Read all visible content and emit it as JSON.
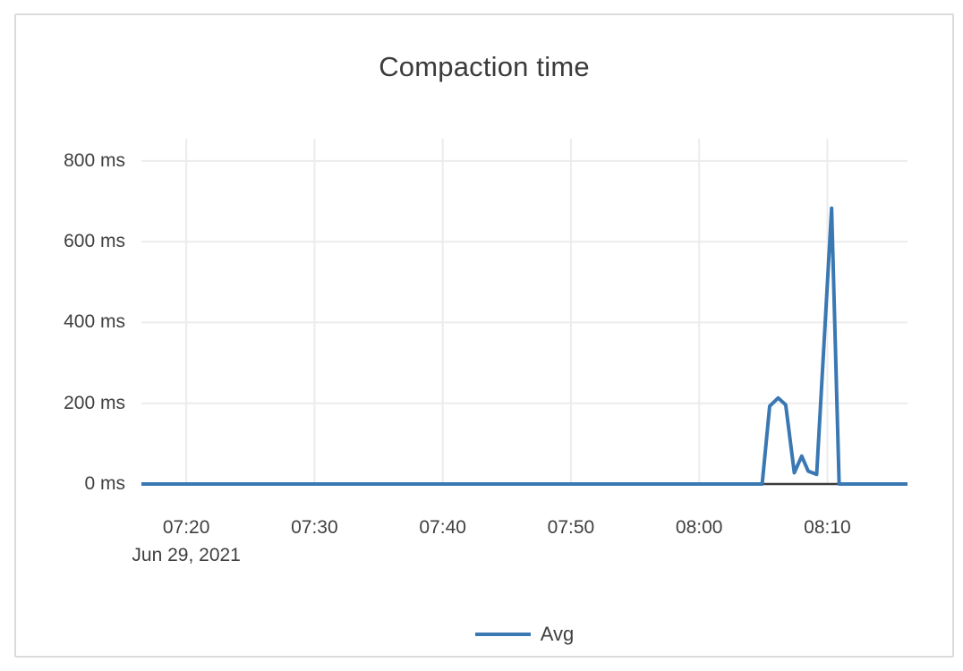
{
  "panel": {
    "background": "#ffffff",
    "border_color": "#dcdcdc"
  },
  "chart_data": {
    "type": "line",
    "title": "Compaction time",
    "grid": true,
    "grid_color": "#ececec",
    "zero_line_color": "#3a3a3a",
    "text_color": "#3f3f3f",
    "legend_position": "bottom",
    "x_axis": {
      "range": [
        "07:16:30",
        "08:16:15"
      ],
      "date_label": "Jun 29, 2021",
      "ticks": [
        {
          "label": "07:20",
          "time": "07:20:00"
        },
        {
          "label": "07:30",
          "time": "07:30:00"
        },
        {
          "label": "07:40",
          "time": "07:40:00"
        },
        {
          "label": "07:50",
          "time": "07:50:00"
        },
        {
          "label": "08:00",
          "time": "08:00:00"
        },
        {
          "label": "08:10",
          "time": "08:10:00"
        }
      ]
    },
    "y_axis": {
      "unit": "ms",
      "range": [
        0,
        855
      ],
      "ticks": [
        {
          "label": "0 ms",
          "value": 0
        },
        {
          "label": "200 ms",
          "value": 200
        },
        {
          "label": "400 ms",
          "value": 400
        },
        {
          "label": "600 ms",
          "value": 600
        },
        {
          "label": "800 ms",
          "value": 800
        }
      ]
    },
    "series": [
      {
        "name": "Avg",
        "color": "#3a78b3",
        "points": [
          {
            "t": "07:16:30",
            "v": 0
          },
          {
            "t": "08:04:55",
            "v": 0
          },
          {
            "t": "08:05:30",
            "v": 193
          },
          {
            "t": "08:06:10",
            "v": 213
          },
          {
            "t": "08:06:45",
            "v": 196
          },
          {
            "t": "08:07:25",
            "v": 28
          },
          {
            "t": "08:08:00",
            "v": 69
          },
          {
            "t": "08:08:30",
            "v": 32
          },
          {
            "t": "08:09:10",
            "v": 24
          },
          {
            "t": "08:10:20",
            "v": 683
          },
          {
            "t": "08:10:55",
            "v": 0
          },
          {
            "t": "08:16:15",
            "v": 0
          }
        ]
      }
    ]
  },
  "legend": {
    "items": [
      {
        "label": "Avg",
        "color": "#3a78b3"
      }
    ]
  }
}
